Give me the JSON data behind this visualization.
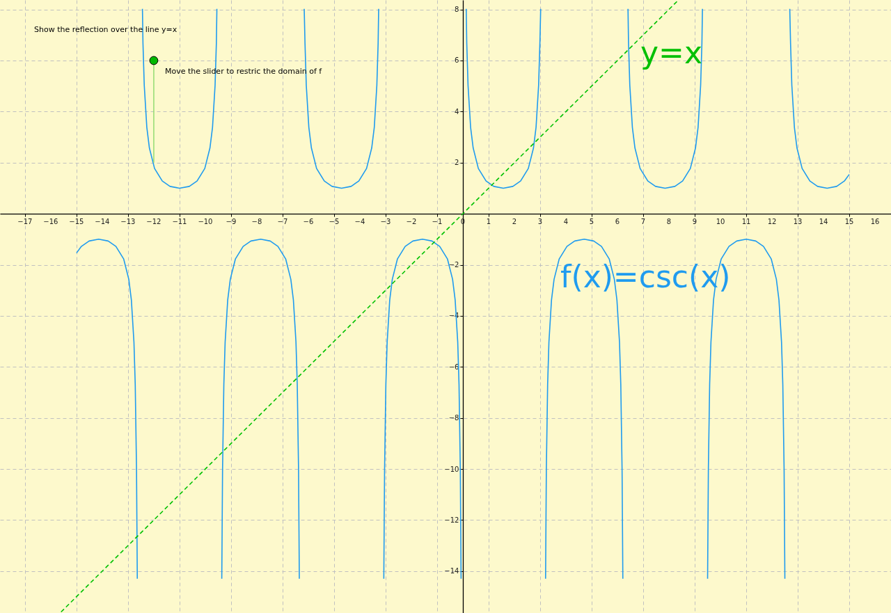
{
  "chart_data": {
    "type": "line",
    "xlim": [
      -17.97,
      16.62
    ],
    "ylim": [
      -15.64,
      8.37
    ],
    "xticks": [
      -17,
      -16,
      -15,
      -14,
      -13,
      -12,
      -11,
      -10,
      -9,
      -8,
      -7,
      -6,
      -5,
      -4,
      -3,
      -2,
      -1,
      0,
      1,
      2,
      3,
      4,
      5,
      6,
      7,
      8,
      9,
      10,
      11,
      12,
      13,
      14,
      15,
      16
    ],
    "yticks": [
      -14,
      -12,
      -10,
      -8,
      -6,
      -4,
      -2,
      {
        "value": 0,
        "label": null
      },
      2,
      4,
      6,
      8
    ],
    "grid": true,
    "annotations": [
      "Show the reflection over the line y=x",
      "Move the slider to restric the domain of f",
      "y=x",
      "f(x)=csc(x)"
    ],
    "series": [
      {
        "color": "#1f9bef",
        "line_style": "solid",
        "x": [
          -15,
          -14.81,
          -14.51,
          -14.14,
          -13.77,
          -13.47,
          -13.17,
          -12.97,
          -12.87,
          -12.77,
          -12.72,
          -12.67,
          -12.64,
          -12.57,
          -12.44,
          -12.42,
          -12.37,
          -12.27,
          -12.17,
          -11.97,
          -11.67,
          -11.37,
          -11,
          -10.62,
          -10.32,
          -10.02,
          -9.82,
          -9.72,
          -9.62,
          -9.57,
          -9.55,
          -9.42,
          -9.36,
          -9.33,
          -9.28,
          -9.23,
          -9.13,
          -9.03,
          -8.83,
          -8.53,
          -8.23,
          -7.85,
          -7.48,
          -7.18,
          -6.88,
          -6.68,
          -6.58,
          -6.48,
          -6.43,
          -6.38,
          -6.35,
          -6.28,
          -6.16,
          -6.13,
          -6.08,
          -5.98,
          -5.88,
          -5.68,
          -5.38,
          -5.08,
          -4.71,
          -4.34,
          -4.04,
          -3.74,
          -3.54,
          -3.44,
          -3.34,
          -3.29,
          -3.27,
          -3.14,
          -3.07,
          -3.04,
          -2.99,
          -2.94,
          -2.84,
          -2.74,
          -2.54,
          -2.24,
          -1.94,
          -1.57,
          -1.2,
          -0.9,
          -0.6,
          -0.4,
          -0.3,
          -0.2,
          -0.15,
          -0.1,
          -0.07,
          0,
          0.13,
          0.15,
          0.2,
          0.3,
          0.4,
          0.6,
          0.9,
          1.2,
          1.57,
          1.94,
          2.24,
          2.54,
          2.74,
          2.84,
          2.94,
          2.99,
          3.02,
          3.14,
          3.21,
          3.24,
          3.29,
          3.34,
          3.44,
          3.54,
          3.74,
          4.04,
          4.34,
          4.71,
          5.08,
          5.38,
          5.68,
          5.88,
          5.98,
          6.08,
          6.13,
          6.18,
          6.21,
          6.28,
          6.41,
          6.43,
          6.48,
          6.58,
          6.68,
          6.88,
          7.18,
          7.48,
          7.85,
          8.23,
          8.53,
          8.83,
          9.03,
          9.13,
          9.23,
          9.28,
          9.3,
          9.42,
          9.5,
          9.53,
          9.58,
          9.63,
          9.73,
          9.83,
          10.03,
          10.33,
          10.63,
          11,
          11.37,
          11.67,
          11.97,
          12.17,
          12.27,
          12.37,
          12.42,
          12.47,
          12.5,
          12.57,
          12.69,
          12.72,
          12.77,
          12.87,
          12.97,
          13.17,
          13.47,
          13.77,
          14.14,
          14.51,
          14.81,
          15
        ],
        "values": [
          -1.54,
          -1.28,
          -1.07,
          -1,
          -1.07,
          -1.28,
          -1.77,
          -2.57,
          -3.38,
          -5.03,
          -6.69,
          -10.02,
          -14.3,
          null,
          8.02,
          6.69,
          5.03,
          3.38,
          2.57,
          1.77,
          1.28,
          1.07,
          1,
          1.07,
          1.28,
          1.77,
          2.57,
          3.38,
          5.03,
          6.69,
          8.02,
          null,
          -14.3,
          -10.02,
          -6.69,
          -5.03,
          -3.38,
          -2.57,
          -1.77,
          -1.28,
          -1.07,
          -1,
          -1.07,
          -1.28,
          -1.77,
          -2.57,
          -3.38,
          -5.03,
          -6.69,
          -10.02,
          -14.3,
          null,
          8.02,
          6.69,
          5.03,
          3.38,
          2.57,
          1.77,
          1.28,
          1.07,
          1,
          1.07,
          1.28,
          1.77,
          2.57,
          3.38,
          5.03,
          6.69,
          8.02,
          null,
          -14.3,
          -10.02,
          -6.69,
          -5.03,
          -3.38,
          -2.57,
          -1.77,
          -1.28,
          -1.07,
          -1,
          -1.07,
          -1.28,
          -1.77,
          -2.57,
          -3.38,
          -5.03,
          -6.69,
          -10.02,
          -14.3,
          null,
          8.02,
          6.69,
          5.03,
          3.38,
          2.57,
          1.77,
          1.28,
          1.07,
          1,
          1.07,
          1.28,
          1.77,
          2.57,
          3.38,
          5.03,
          6.69,
          8.02,
          null,
          -14.3,
          -10.02,
          -6.69,
          -5.03,
          -3.38,
          -2.57,
          -1.77,
          -1.28,
          -1.07,
          -1,
          -1.07,
          -1.28,
          -1.77,
          -2.57,
          -3.38,
          -5.03,
          -6.69,
          -10.02,
          -14.3,
          null,
          8.02,
          6.69,
          5.03,
          3.38,
          2.57,
          1.77,
          1.28,
          1.07,
          1,
          1.07,
          1.28,
          1.77,
          2.57,
          3.38,
          5.03,
          6.69,
          8.02,
          null,
          -14.3,
          -10.02,
          -6.69,
          -5.03,
          -3.38,
          -2.57,
          -1.77,
          -1.28,
          -1.07,
          -1,
          -1.07,
          -1.28,
          -1.77,
          -2.57,
          -3.38,
          -5.03,
          -6.69,
          -10.02,
          -14.3,
          null,
          8.02,
          6.69,
          5.03,
          3.38,
          2.57,
          1.77,
          1.28,
          1.07,
          1,
          1.07,
          1.28,
          1.54
        ]
      },
      {
        "color": "#00c000",
        "type": "line",
        "line_style": "dashed",
        "x": [
          -15.6,
          8.37
        ],
        "values": [
          -15.6,
          8.37
        ]
      },
      {
        "color": "#99dd77",
        "type": "line",
        "line_style": "solid",
        "x": [
          -12,
          -12
        ],
        "values": [
          2,
          6
        ]
      },
      {
        "color": "#00b800",
        "type": "scatter",
        "marker": "circle",
        "x": [
          -12
        ],
        "values": [
          6
        ]
      }
    ]
  }
}
